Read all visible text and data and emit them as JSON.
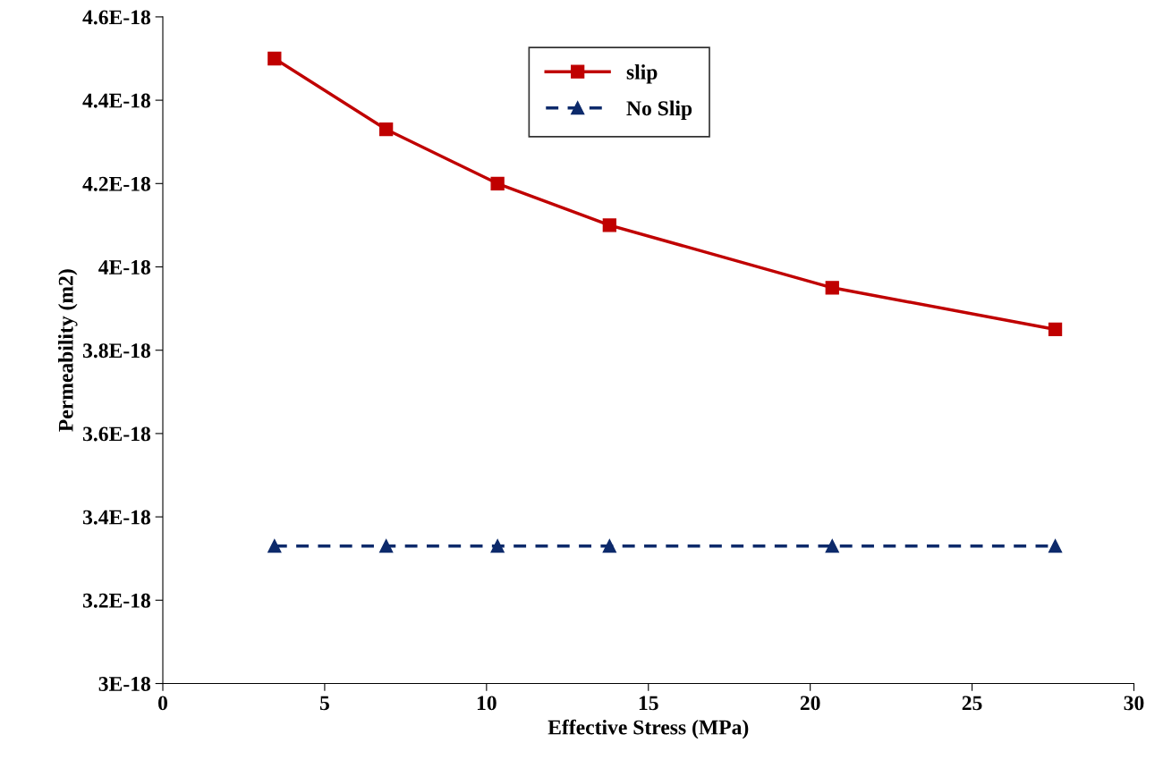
{
  "chart_data": {
    "type": "line",
    "xlabel": "Effective Stress (MPa)",
    "ylabel": "Permeability (m2)",
    "x": [
      3.45,
      6.9,
      10.34,
      13.8,
      20.68,
      27.57
    ],
    "series": [
      {
        "name": "slip",
        "color": "#c00000",
        "marker": "square",
        "line_style": "solid",
        "values": [
          4.5e-18,
          4.33e-18,
          4.2e-18,
          4.1e-18,
          3.95e-18,
          3.85e-18
        ]
      },
      {
        "name": "No Slip",
        "color": "#0d2a6b",
        "marker": "triangle",
        "line_style": "dashed",
        "values": [
          3.33e-18,
          3.33e-18,
          3.33e-18,
          3.33e-18,
          3.33e-18,
          3.33e-18
        ]
      }
    ],
    "xlim": [
      0,
      30
    ],
    "xticks": [
      0,
      5,
      10,
      15,
      20,
      25,
      30
    ],
    "ylim": [
      3e-18,
      4.6e-18
    ],
    "yticks": [
      {
        "value": 3e-18,
        "label": "3E-18"
      },
      {
        "value": 3.2e-18,
        "label": "3.2E-18"
      },
      {
        "value": 3.4e-18,
        "label": "3.4E-18"
      },
      {
        "value": 3.6e-18,
        "label": "3.6E-18"
      },
      {
        "value": 3.8e-18,
        "label": "3.8E-18"
      },
      {
        "value": 4e-18,
        "label": "4E-18"
      },
      {
        "value": 4.2e-18,
        "label": "4.2E-18"
      },
      {
        "value": 4.4e-18,
        "label": "4.4E-18"
      },
      {
        "value": 4.6e-18,
        "label": "4.6E-18"
      }
    ],
    "grid": false,
    "legend": "top"
  }
}
